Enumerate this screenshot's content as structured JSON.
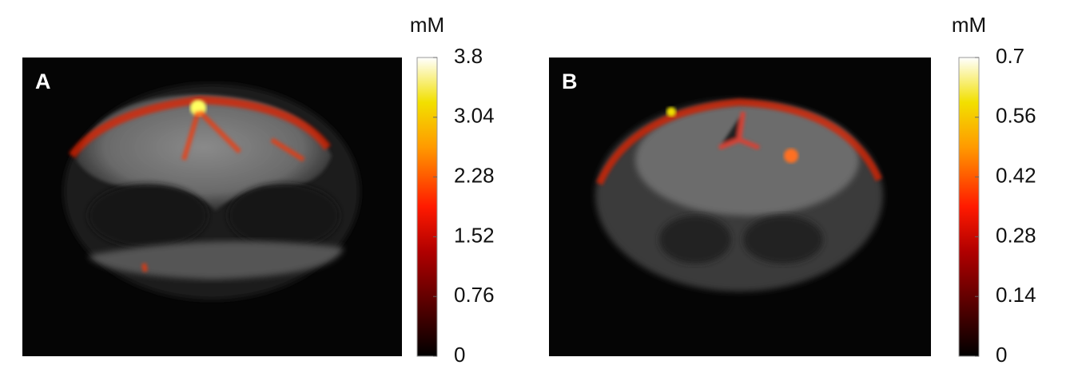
{
  "chart_data": [
    {
      "type": "image",
      "label": "A",
      "colorbar_title": "mM",
      "clim": [
        0,
        3.8
      ],
      "cticks": [
        0,
        0.76,
        1.52,
        2.28,
        3.04,
        3.8
      ]
    },
    {
      "type": "image",
      "label": "B",
      "colorbar_title": "mM",
      "clim": [
        0,
        0.7
      ],
      "cticks": [
        0,
        0.14,
        0.28,
        0.42,
        0.56,
        0.7
      ]
    }
  ]
}
